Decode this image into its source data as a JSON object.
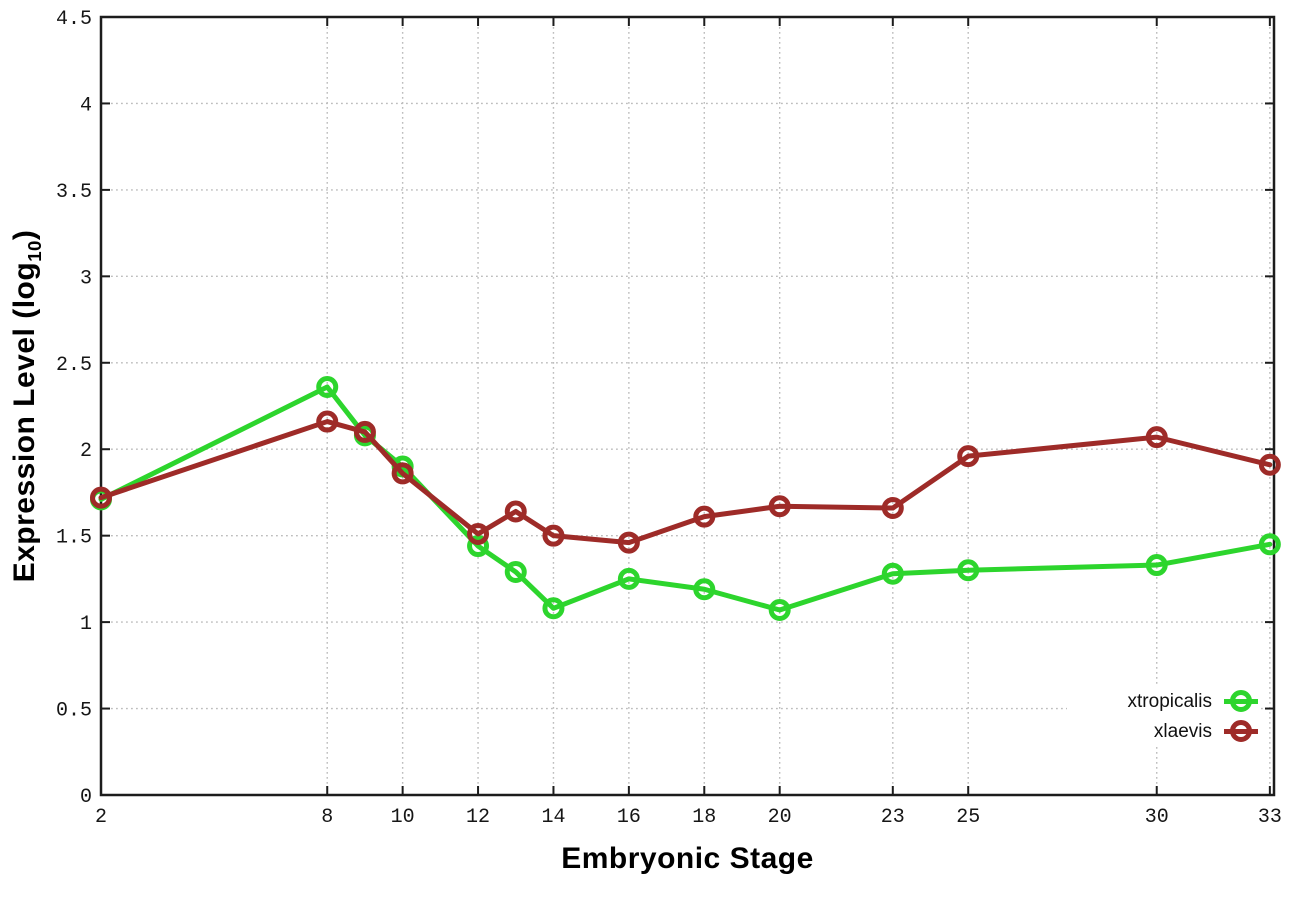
{
  "figure": {
    "background": "#ffffff"
  },
  "chart_data": {
    "type": "line",
    "title": "",
    "xlabel": "Embryonic Stage",
    "ylabel": "Expression Level (log10)",
    "ylabel_parts": {
      "pre": "Expression Level (log",
      "sub": "10",
      "post": ")"
    },
    "x": [
      2,
      8,
      9,
      10,
      12,
      13,
      14,
      16,
      18,
      20,
      23,
      25,
      30,
      33
    ],
    "series": [
      {
        "name": "xtropicalis",
        "color": "#2dd52d",
        "marker": "open-circle",
        "values": [
          1.71,
          2.36,
          2.08,
          1.9,
          1.44,
          1.29,
          1.08,
          1.25,
          1.19,
          1.07,
          1.28,
          1.3,
          1.33,
          1.45
        ]
      },
      {
        "name": "xlaevis",
        "color": "#9e2b28",
        "marker": "open-circle",
        "values": [
          1.72,
          2.16,
          2.1,
          1.86,
          1.51,
          1.64,
          1.5,
          1.46,
          1.61,
          1.67,
          1.66,
          1.96,
          2.07,
          1.91
        ]
      }
    ],
    "xticks": {
      "values": [
        2,
        8,
        10,
        12,
        14,
        16,
        18,
        20,
        23,
        25,
        30,
        33
      ],
      "labels": [
        "2",
        "8",
        "10",
        "12",
        "14",
        "16",
        "18",
        "20",
        "23",
        "25",
        "30",
        "33"
      ]
    },
    "yticks": {
      "values": [
        0,
        0.5,
        1,
        1.5,
        2,
        2.5,
        3,
        3.5,
        4,
        4.5
      ],
      "labels": [
        "0",
        "0.5",
        "1",
        "1.5",
        "2",
        "2.5",
        "3",
        "3.5",
        "4",
        "4.5"
      ]
    },
    "xlim": [
      2,
      33.11
    ],
    "ylim": [
      0,
      4.5
    ],
    "grid": true,
    "legend_position": "bottom-right",
    "axis_color": "#1c1c1c",
    "grid_color": "#bdbdbd",
    "tick_label_color": "#161616"
  }
}
